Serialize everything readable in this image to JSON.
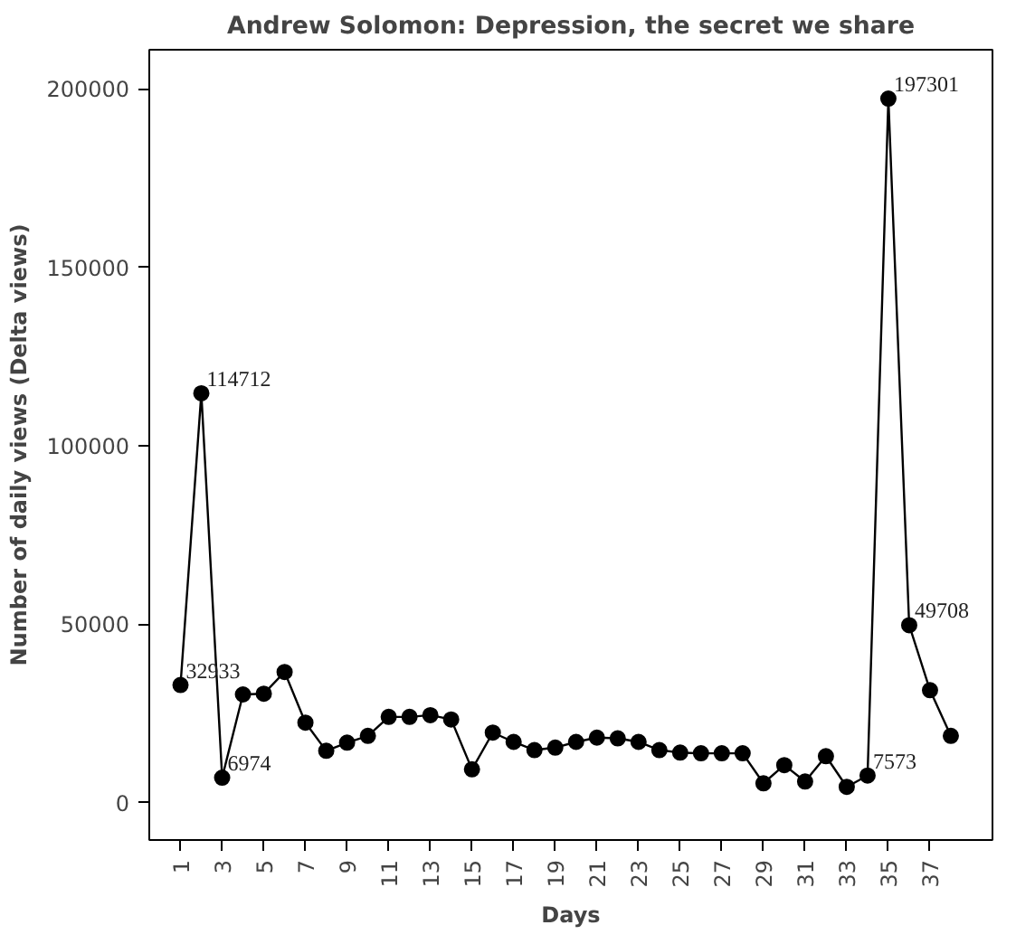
{
  "chart_data": {
    "type": "line",
    "title": "Andrew Solomon: Depression, the secret we share",
    "xlabel": "Days",
    "ylabel": "Number of daily views (Delta views)",
    "x": [
      1,
      2,
      3,
      4,
      5,
      6,
      7,
      8,
      9,
      10,
      11,
      12,
      13,
      14,
      15,
      16,
      17,
      18,
      19,
      20,
      21,
      22,
      23,
      24,
      25,
      26,
      27,
      28,
      29,
      30,
      31,
      32,
      33,
      34,
      35,
      36,
      37,
      38
    ],
    "values": [
      32933,
      114712,
      6974,
      30300,
      30500,
      36600,
      22400,
      14500,
      16800,
      18700,
      24000,
      24000,
      24500,
      23300,
      9300,
      19600,
      17000,
      14700,
      15400,
      17000,
      18200,
      18000,
      17000,
      14700,
      14000,
      13800,
      13800,
      13800,
      5400,
      10500,
      5900,
      13000,
      4400,
      7573,
      197301,
      49708,
      31500,
      18700
    ],
    "value_labels": [
      "32933",
      "114712",
      "6974",
      null,
      null,
      null,
      null,
      null,
      null,
      null,
      null,
      null,
      null,
      null,
      null,
      null,
      null,
      null,
      null,
      null,
      null,
      null,
      null,
      null,
      null,
      null,
      null,
      null,
      null,
      null,
      null,
      null,
      null,
      "7573",
      "197301",
      "49708",
      null,
      null
    ],
    "color": "#000000",
    "marker": "circle",
    "line_style": "solid",
    "grid": false,
    "xlim": [
      -0.5,
      40
    ],
    "xticks": [
      1,
      3,
      5,
      7,
      9,
      11,
      13,
      15,
      17,
      19,
      21,
      23,
      25,
      27,
      29,
      31,
      33,
      35,
      37
    ],
    "ylim": [
      -10500,
      211000
    ],
    "yticks": [
      0,
      50000,
      100000,
      150000,
      200000
    ]
  }
}
